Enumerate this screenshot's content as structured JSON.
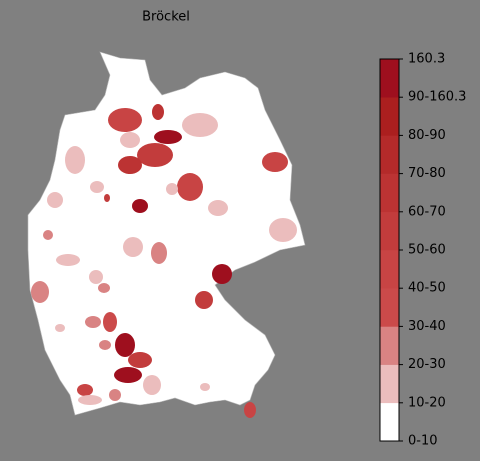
{
  "title": "Bröckel",
  "legend": {
    "labels": [
      "0-10",
      "10-20",
      "20-30",
      "30-40",
      "40-50",
      "50-60",
      "60-70",
      "70-80",
      "80-90",
      "90-160.3",
      "160.3"
    ],
    "colors": [
      "#ffffff",
      "#ebbdbd",
      "#d98383",
      "#cb4a4a",
      "#c84444",
      "#c23c3c",
      "#bc3333",
      "#b42a2a",
      "#ab1f1f",
      "#9e0f1e"
    ]
  }
}
